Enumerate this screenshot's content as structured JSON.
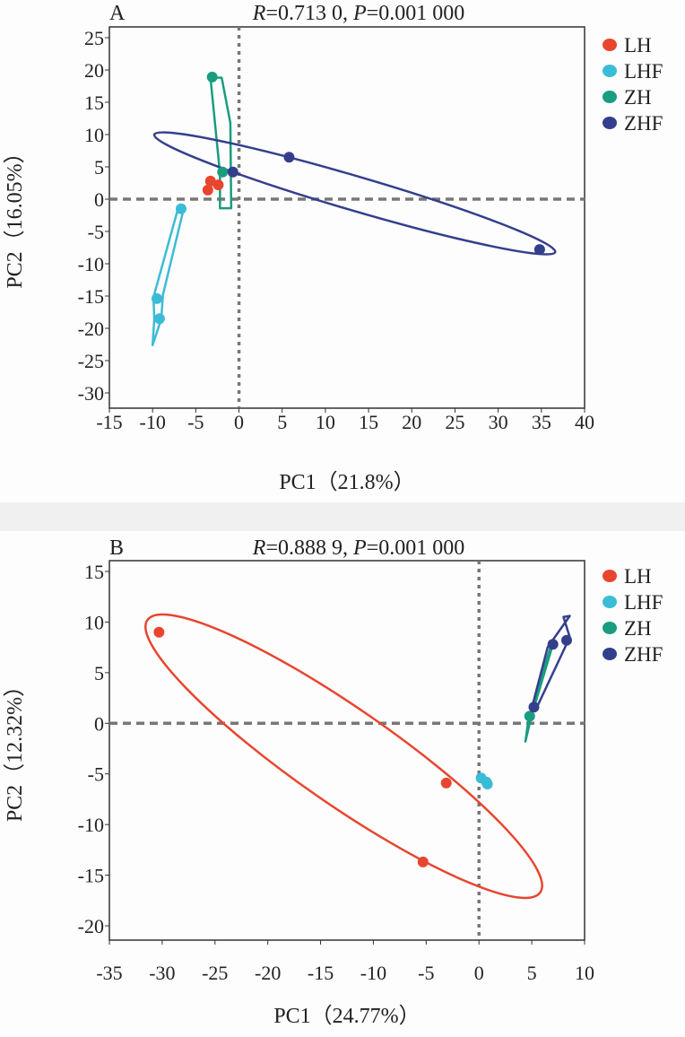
{
  "chart_data": [
    {
      "type": "scatter",
      "panel_label": "A",
      "title_parts": {
        "r_label": "R",
        "r_value": "=0.713 0, ",
        "p_label": "P",
        "p_value": "=0.001 000"
      },
      "xlabel": "PC1（21.8%）",
      "ylabel": "PC2（16.05%）",
      "xlim": [
        -15,
        40
      ],
      "ylim": [
        -30,
        25
      ],
      "xticks": [
        -15,
        -10,
        -5,
        0,
        5,
        10,
        15,
        20,
        25,
        30,
        35,
        40
      ],
      "yticks": [
        25,
        20,
        15,
        10,
        5,
        0,
        -5,
        -10,
        -15,
        -20,
        -25,
        -30
      ],
      "legend": "right",
      "series": [
        {
          "name": "LH",
          "color": "#e8452f",
          "points": [
            [
              -3.6,
              1.4
            ],
            [
              -3.3,
              2.8
            ],
            [
              -2.4,
              2.2
            ]
          ],
          "outline": {
            "kind": "polygon",
            "points": []
          }
        },
        {
          "name": "LHF",
          "color": "#3bbcd6",
          "points": [
            [
              -6.7,
              -1.5
            ],
            [
              -9.5,
              -15.4
            ],
            [
              -9.2,
              -18.5
            ]
          ],
          "outline": {
            "kind": "polygon",
            "points": [
              [
                -6.4,
                -1.5
              ],
              [
                -8.8,
                -14.8
              ],
              [
                -9.0,
                -18.6
              ],
              [
                -10.0,
                -22.6
              ],
              [
                -9.8,
                -18.5
              ],
              [
                -9.9,
                -15.2
              ],
              [
                -7.0,
                -1.2
              ]
            ]
          }
        },
        {
          "name": "ZH",
          "color": "#1a9c7f",
          "points": [
            [
              -3.1,
              18.9
            ],
            [
              -1.9,
              4.2
            ]
          ],
          "outline": {
            "kind": "polygon",
            "points": [
              [
                -3.3,
                18.8
              ],
              [
                -2.0,
                18.8
              ],
              [
                -1.0,
                11.8
              ],
              [
                -0.9,
                -1.4
              ],
              [
                -2.2,
                -1.4
              ],
              [
                -2.2,
                4.0
              ]
            ]
          }
        },
        {
          "name": "ZHF",
          "color": "#343f8c",
          "points": [
            [
              -0.7,
              4.2
            ],
            [
              5.8,
              6.5
            ],
            [
              34.8,
              -7.8
            ]
          ],
          "outline": {
            "kind": "ellipse",
            "p1": [
              -9.8,
              10.0
            ],
            "p2": [
              36.6,
              -8.2
            ],
            "width_ratio": 0.082
          }
        }
      ]
    },
    {
      "type": "scatter",
      "panel_label": "B",
      "title_parts": {
        "r_label": "R",
        "r_value": "=0.888 9, ",
        "p_label": "P",
        "p_value": "=0.001 000"
      },
      "xlabel": "PC1（24.77%）",
      "ylabel": "PC2（12.32%）",
      "xlim": [
        -35,
        10
      ],
      "ylim": [
        -20,
        15
      ],
      "xticks": [
        -35,
        -30,
        -25,
        -20,
        -15,
        -10,
        -5,
        0,
        5,
        10
      ],
      "yticks": [
        15,
        10,
        5,
        0,
        -5,
        -10,
        -15,
        -20
      ],
      "legend": "right",
      "series": [
        {
          "name": "LH",
          "color": "#e8452f",
          "points": [
            [
              -30.3,
              9.0
            ],
            [
              -3.1,
              -5.9
            ],
            [
              -5.3,
              -13.7
            ]
          ],
          "outline": {
            "kind": "ellipse",
            "p1": [
              -31.4,
              10.2
            ],
            "p2": [
              5.8,
              -16.7
            ],
            "width_ratio": 0.2
          }
        },
        {
          "name": "LHF",
          "color": "#3bbcd6",
          "points": [
            [
              0.2,
              -5.4
            ],
            [
              0.7,
              -5.8
            ],
            [
              0.8,
              -6.0
            ]
          ],
          "outline": {
            "kind": "polygon",
            "points": []
          }
        },
        {
          "name": "ZH",
          "color": "#1a9c7f",
          "points": [
            [
              4.8,
              0.7
            ]
          ],
          "outline": {
            "kind": "polygon",
            "points": [
              [
                4.4,
                -1.8
              ],
              [
                4.7,
                0.5
              ],
              [
                6.8,
                7.6
              ],
              [
                7.0,
                7.8
              ],
              [
                5.2,
                1.5
              ],
              [
                4.8,
                0.0
              ]
            ]
          }
        },
        {
          "name": "ZHF",
          "color": "#343f8c",
          "points": [
            [
              5.2,
              1.6
            ],
            [
              7.0,
              7.8
            ],
            [
              8.3,
              8.2
            ]
          ],
          "outline": {
            "kind": "polygon",
            "points": [
              [
                5.0,
                1.5
              ],
              [
                6.5,
                7.5
              ],
              [
                8.6,
                10.6
              ],
              [
                8.0,
                10.5
              ],
              [
                8.6,
                8.5
              ],
              [
                5.4,
                1.4
              ]
            ]
          }
        }
      ]
    }
  ]
}
